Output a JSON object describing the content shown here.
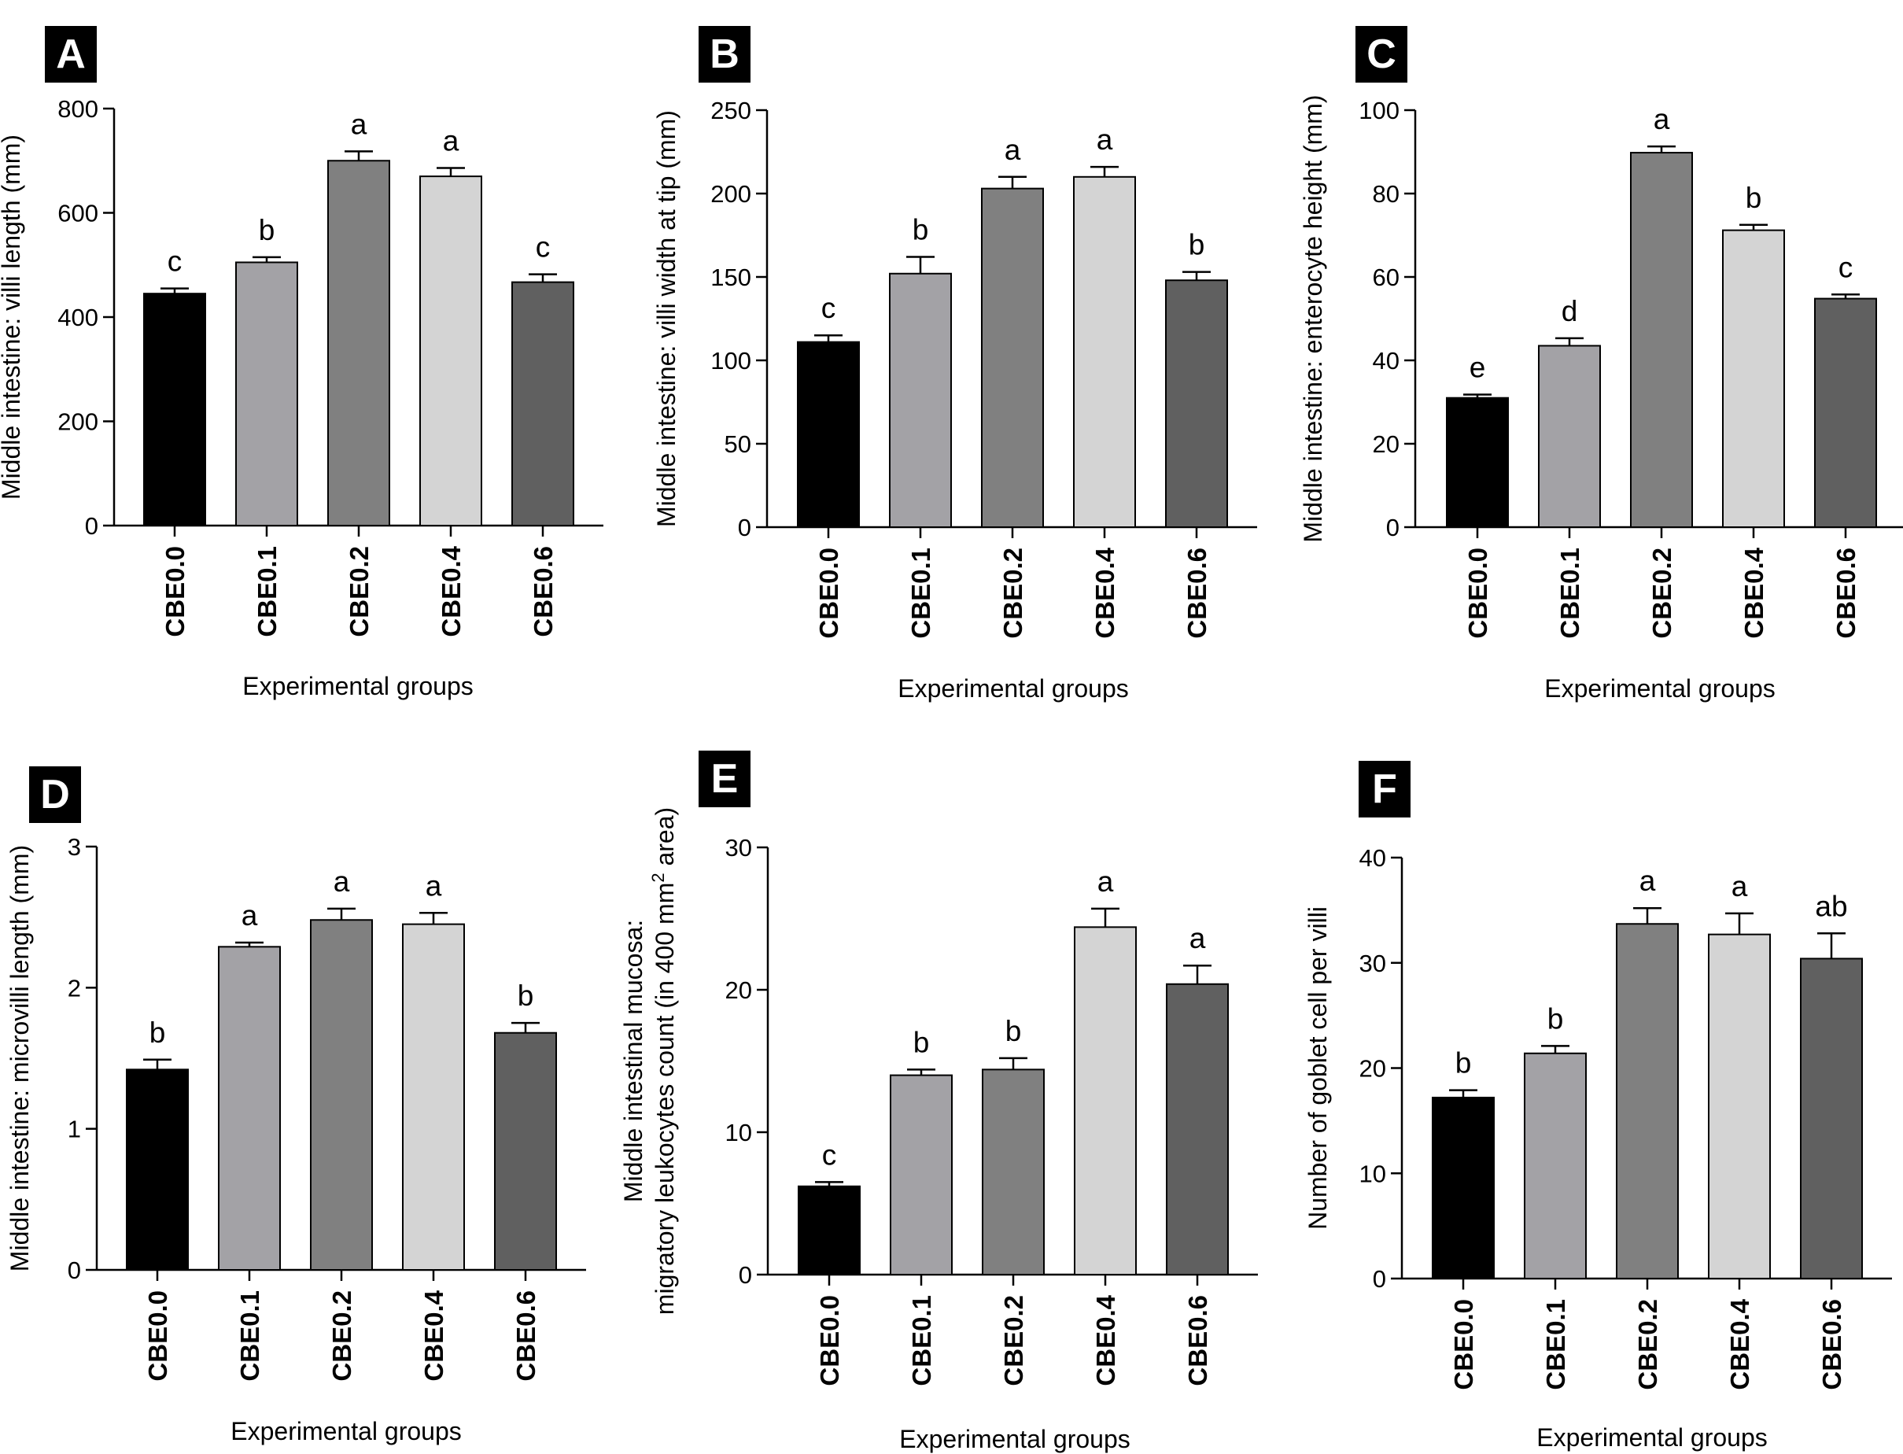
{
  "chart_data": [
    {
      "panel": "A",
      "type": "bar",
      "categories": [
        "CBE0.0",
        "CBE0.1",
        "CBE0.2",
        "CBE0.4",
        "CBE0.6"
      ],
      "values": [
        445,
        505,
        700,
        670,
        467
      ],
      "errors": [
        10,
        10,
        18,
        16,
        15
      ],
      "significance": [
        "c",
        "b",
        "a",
        "a",
        "c"
      ],
      "bar_colors": [
        "#000000",
        "#a3a2a6",
        "#808080",
        "#d4d4d4",
        "#606060"
      ],
      "xlabel": "Experimental groups",
      "ylabel": [
        "Middle intestine: villi length (mm)"
      ],
      "ylim": [
        0,
        800
      ],
      "yticks": [
        0,
        200,
        400,
        600,
        800
      ]
    },
    {
      "panel": "B",
      "type": "bar",
      "categories": [
        "CBE0.0",
        "CBE0.1",
        "CBE0.2",
        "CBE0.4",
        "CBE0.6"
      ],
      "values": [
        111,
        152,
        203,
        210,
        148
      ],
      "errors": [
        4,
        10,
        7,
        6,
        5
      ],
      "significance": [
        "c",
        "b",
        "a",
        "a",
        "b"
      ],
      "bar_colors": [
        "#000000",
        "#a3a2a6",
        "#808080",
        "#d4d4d4",
        "#606060"
      ],
      "xlabel": "Experimental groups",
      "ylabel": [
        "Middle intestine: villi width at tip (mm)"
      ],
      "ylim": [
        0,
        250
      ],
      "yticks": [
        0,
        50,
        100,
        150,
        200,
        250
      ]
    },
    {
      "panel": "C",
      "type": "bar",
      "categories": [
        "CBE0.0",
        "CBE0.1",
        "CBE0.2",
        "CBE0.4",
        "CBE0.6"
      ],
      "values": [
        31,
        43.5,
        89.8,
        71.2,
        54.8
      ],
      "errors": [
        0.8,
        1.8,
        1.5,
        1.3,
        1.0
      ],
      "significance": [
        "e",
        "d",
        "a",
        "b",
        "c"
      ],
      "bar_colors": [
        "#000000",
        "#a3a2a6",
        "#808080",
        "#d4d4d4",
        "#606060"
      ],
      "xlabel": "Experimental groups",
      "ylabel": [
        "Middle intestine: enterocyte height (mm)"
      ],
      "ylim": [
        0,
        100
      ],
      "yticks": [
        0,
        20,
        40,
        60,
        80,
        100
      ]
    },
    {
      "panel": "D",
      "type": "bar",
      "categories": [
        "CBE0.0",
        "CBE0.1",
        "CBE0.2",
        "CBE0.4",
        "CBE0.6"
      ],
      "values": [
        1.42,
        2.29,
        2.48,
        2.45,
        1.68
      ],
      "errors": [
        0.07,
        0.03,
        0.08,
        0.08,
        0.07
      ],
      "significance": [
        "b",
        "a",
        "a",
        "a",
        "b"
      ],
      "bar_colors": [
        "#000000",
        "#a3a2a6",
        "#808080",
        "#d4d4d4",
        "#606060"
      ],
      "xlabel": "Experimental groups",
      "ylabel": [
        "Middle intestine: microvilli length (mm)"
      ],
      "ylim": [
        0,
        3
      ],
      "yticks": [
        0,
        1,
        2,
        3
      ]
    },
    {
      "panel": "E",
      "type": "bar",
      "categories": [
        "CBE0.0",
        "CBE0.1",
        "CBE0.2",
        "CBE0.4",
        "CBE0.6"
      ],
      "values": [
        6.2,
        14.0,
        14.4,
        24.4,
        20.4
      ],
      "errors": [
        0.3,
        0.4,
        0.8,
        1.3,
        1.3
      ],
      "significance": [
        "c",
        "b",
        "b",
        "a",
        "a"
      ],
      "bar_colors": [
        "#000000",
        "#a3a2a6",
        "#808080",
        "#d4d4d4",
        "#606060"
      ],
      "xlabel": "Experimental groups",
      "ylabel": [
        "Middle intestinal mucosa:",
        "migratory leukocytes count (in 400 mm",
        "2",
        " area)"
      ],
      "ylim": [
        0,
        30
      ],
      "yticks": [
        0,
        10,
        20,
        30
      ]
    },
    {
      "panel": "F",
      "type": "bar",
      "categories": [
        "CBE0.0",
        "CBE0.1",
        "CBE0.2",
        "CBE0.4",
        "CBE0.6"
      ],
      "values": [
        17.2,
        21.4,
        33.7,
        32.7,
        30.4
      ],
      "errors": [
        0.7,
        0.7,
        1.5,
        2.0,
        2.4
      ],
      "significance": [
        "b",
        "b",
        "a",
        "a",
        "ab"
      ],
      "bar_colors": [
        "#000000",
        "#a3a2a6",
        "#808080",
        "#d4d4d4",
        "#606060"
      ],
      "xlabel": "Experimental groups",
      "ylabel": [
        "Number of goblet cell per villi"
      ],
      "ylim": [
        0,
        40
      ],
      "yticks": [
        0,
        10,
        20,
        30,
        40
      ]
    }
  ]
}
